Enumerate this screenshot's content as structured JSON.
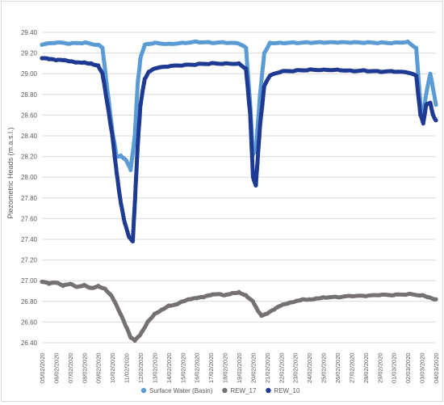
{
  "chart_data": {
    "type": "scatter",
    "ylabel": "Piezometric Heads (m.a.s.l.)",
    "ylim": [
      26.4,
      29.4
    ],
    "yticks": [
      "26.40",
      "26.60",
      "26.80",
      "27.00",
      "27.20",
      "27.40",
      "27.60",
      "27.80",
      "28.00",
      "28.20",
      "28.40",
      "28.60",
      "28.80",
      "29.00",
      "29.20",
      "29.40"
    ],
    "xticks": [
      "05/02/2020",
      "06/02/2020",
      "07/02/2020",
      "08/02/2020",
      "09/02/2020",
      "10/02/2020",
      "11/02/2020",
      "12/02/2020",
      "13/02/2020",
      "14/02/2020",
      "15/02/2020",
      "16/02/2020",
      "17/02/2020",
      "18/02/2020",
      "19/02/2020",
      "20/02/2020",
      "21/02/2020",
      "22/02/2020",
      "23/02/2020",
      "24/02/2020",
      "25/02/2020",
      "26/02/2020",
      "27/02/2020",
      "28/02/2020",
      "29/02/2020",
      "01/03/2020",
      "02/03/2020",
      "03/03/2020",
      "04/03/2020"
    ],
    "grid": true,
    "legend_position": "bottom",
    "series": [
      {
        "name": "Surface Water (Basin)",
        "color": "#5b9bd5",
        "points": [
          [
            0,
            29.28
          ],
          [
            1,
            29.3
          ],
          [
            2,
            29.29
          ],
          [
            3,
            29.3
          ],
          [
            4,
            29.28
          ],
          [
            4.3,
            29.25
          ],
          [
            4.6,
            28.9
          ],
          [
            5.0,
            28.45
          ],
          [
            5.3,
            28.2
          ],
          [
            5.6,
            28.21
          ],
          [
            6.0,
            28.16
          ],
          [
            6.3,
            28.07
          ],
          [
            6.6,
            28.4
          ],
          [
            6.8,
            28.9
          ],
          [
            7.0,
            29.15
          ],
          [
            7.3,
            29.28
          ],
          [
            8,
            29.3
          ],
          [
            9,
            29.29
          ],
          [
            10,
            29.3
          ],
          [
            11,
            29.31
          ],
          [
            12,
            29.3
          ],
          [
            13,
            29.3
          ],
          [
            14,
            29.29
          ],
          [
            14.5,
            29.25
          ],
          [
            14.8,
            28.7
          ],
          [
            15.0,
            28.22
          ],
          [
            15.2,
            28.25
          ],
          [
            15.5,
            28.8
          ],
          [
            15.8,
            29.2
          ],
          [
            16.2,
            29.3
          ],
          [
            17,
            29.3
          ],
          [
            18,
            29.3
          ],
          [
            19,
            29.3
          ],
          [
            20,
            29.3
          ],
          [
            21,
            29.3
          ],
          [
            22,
            29.3
          ],
          [
            23,
            29.3
          ],
          [
            24,
            29.3
          ],
          [
            25,
            29.3
          ],
          [
            26,
            29.31
          ],
          [
            26.6,
            29.25
          ],
          [
            26.9,
            28.7
          ],
          [
            27.1,
            28.6
          ],
          [
            27.3,
            28.8
          ],
          [
            27.6,
            29.0
          ],
          [
            27.8,
            28.85
          ],
          [
            28,
            28.7
          ]
        ]
      },
      {
        "name": "REW_17",
        "color": "#767171",
        "points": [
          [
            0,
            26.99
          ],
          [
            0.5,
            26.97
          ],
          [
            1,
            26.98
          ],
          [
            1.5,
            26.95
          ],
          [
            2,
            26.97
          ],
          [
            2.5,
            26.94
          ],
          [
            3,
            26.96
          ],
          [
            3.5,
            26.93
          ],
          [
            4,
            26.95
          ],
          [
            4.5,
            26.92
          ],
          [
            5,
            26.84
          ],
          [
            5.5,
            26.7
          ],
          [
            6,
            26.55
          ],
          [
            6.3,
            26.45
          ],
          [
            6.6,
            26.42
          ],
          [
            7,
            26.48
          ],
          [
            7.5,
            26.6
          ],
          [
            8,
            26.68
          ],
          [
            8.5,
            26.72
          ],
          [
            9,
            26.76
          ],
          [
            9.5,
            26.77
          ],
          [
            10,
            26.8
          ],
          [
            10.5,
            26.82
          ],
          [
            11,
            26.83
          ],
          [
            11.5,
            26.84
          ],
          [
            12,
            26.86
          ],
          [
            12.5,
            26.87
          ],
          [
            13,
            26.86
          ],
          [
            13.5,
            26.88
          ],
          [
            14,
            26.89
          ],
          [
            14.5,
            26.86
          ],
          [
            15,
            26.8
          ],
          [
            15.3,
            26.72
          ],
          [
            15.6,
            26.66
          ],
          [
            16,
            26.68
          ],
          [
            16.5,
            26.72
          ],
          [
            17,
            26.76
          ],
          [
            17.5,
            26.78
          ],
          [
            18,
            26.8
          ],
          [
            18.5,
            26.82
          ],
          [
            19,
            26.82
          ],
          [
            19.5,
            26.83
          ],
          [
            20,
            26.84
          ],
          [
            21,
            26.84
          ],
          [
            22,
            26.85
          ],
          [
            23,
            26.85
          ],
          [
            24,
            26.86
          ],
          [
            25,
            26.86
          ],
          [
            26,
            26.87
          ],
          [
            27,
            26.86
          ],
          [
            27.5,
            26.84
          ],
          [
            28,
            26.82
          ]
        ]
      },
      {
        "name": "REW_10",
        "color": "#1f3a93",
        "points": [
          [
            0,
            29.15
          ],
          [
            0.5,
            29.14
          ],
          [
            1,
            29.13
          ],
          [
            1.5,
            29.13
          ],
          [
            2,
            29.12
          ],
          [
            2.5,
            29.11
          ],
          [
            3,
            29.11
          ],
          [
            3.5,
            29.1
          ],
          [
            4,
            29.08
          ],
          [
            4.3,
            29.0
          ],
          [
            4.6,
            28.75
          ],
          [
            5.0,
            28.4
          ],
          [
            5.3,
            28.05
          ],
          [
            5.6,
            27.75
          ],
          [
            5.9,
            27.55
          ],
          [
            6.2,
            27.42
          ],
          [
            6.45,
            27.38
          ],
          [
            6.6,
            27.75
          ],
          [
            6.8,
            28.3
          ],
          [
            7.0,
            28.7
          ],
          [
            7.3,
            28.95
          ],
          [
            7.6,
            29.02
          ],
          [
            8,
            29.05
          ],
          [
            9,
            29.07
          ],
          [
            10,
            29.08
          ],
          [
            11,
            29.09
          ],
          [
            12,
            29.1
          ],
          [
            13,
            29.1
          ],
          [
            14,
            29.1
          ],
          [
            14.5,
            29.05
          ],
          [
            14.8,
            28.6
          ],
          [
            15.0,
            28.0
          ],
          [
            15.2,
            27.92
          ],
          [
            15.5,
            28.5
          ],
          [
            15.8,
            28.88
          ],
          [
            16.2,
            28.98
          ],
          [
            17,
            29.02
          ],
          [
            18,
            29.03
          ],
          [
            19,
            29.04
          ],
          [
            20,
            29.04
          ],
          [
            21,
            29.04
          ],
          [
            22,
            29.03
          ],
          [
            23,
            29.03
          ],
          [
            24,
            29.02
          ],
          [
            25,
            29.02
          ],
          [
            26,
            29.01
          ],
          [
            26.6,
            28.98
          ],
          [
            26.9,
            28.6
          ],
          [
            27.1,
            28.52
          ],
          [
            27.3,
            28.7
          ],
          [
            27.6,
            28.72
          ],
          [
            27.8,
            28.6
          ],
          [
            28,
            28.55
          ]
        ]
      }
    ]
  }
}
